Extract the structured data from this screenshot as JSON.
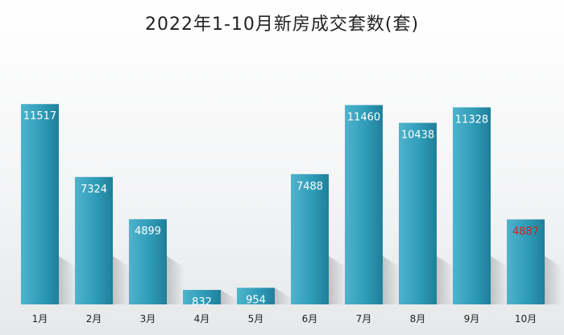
{
  "chart_data": {
    "type": "bar",
    "title": "2022年1-10月新房成交套数(套)",
    "categories": [
      "1月",
      "2月",
      "3月",
      "4月",
      "5月",
      "6月",
      "7月",
      "8月",
      "9月",
      "10月"
    ],
    "values": [
      11517,
      7324,
      4899,
      832,
      954,
      7488,
      11460,
      10438,
      11328,
      4887
    ],
    "labels": [
      "11517",
      "7324",
      "4899",
      "832",
      "954",
      "7488",
      "11460",
      "10438",
      "11328",
      "4887"
    ],
    "label_colors": [
      "#ffffff",
      "#ffffff",
      "#ffffff",
      "#ffffff",
      "#ffffff",
      "#ffffff",
      "#ffffff",
      "#ffffff",
      "#ffffff",
      "#d81e1e"
    ],
    "bar_color": "#2f9cb8",
    "bar_color_light": "#4fb3cc",
    "bar_color_dark": "#1f7f99",
    "ylim": [
      0,
      12500
    ],
    "grid": false,
    "xlabel": "",
    "ylabel": ""
  }
}
